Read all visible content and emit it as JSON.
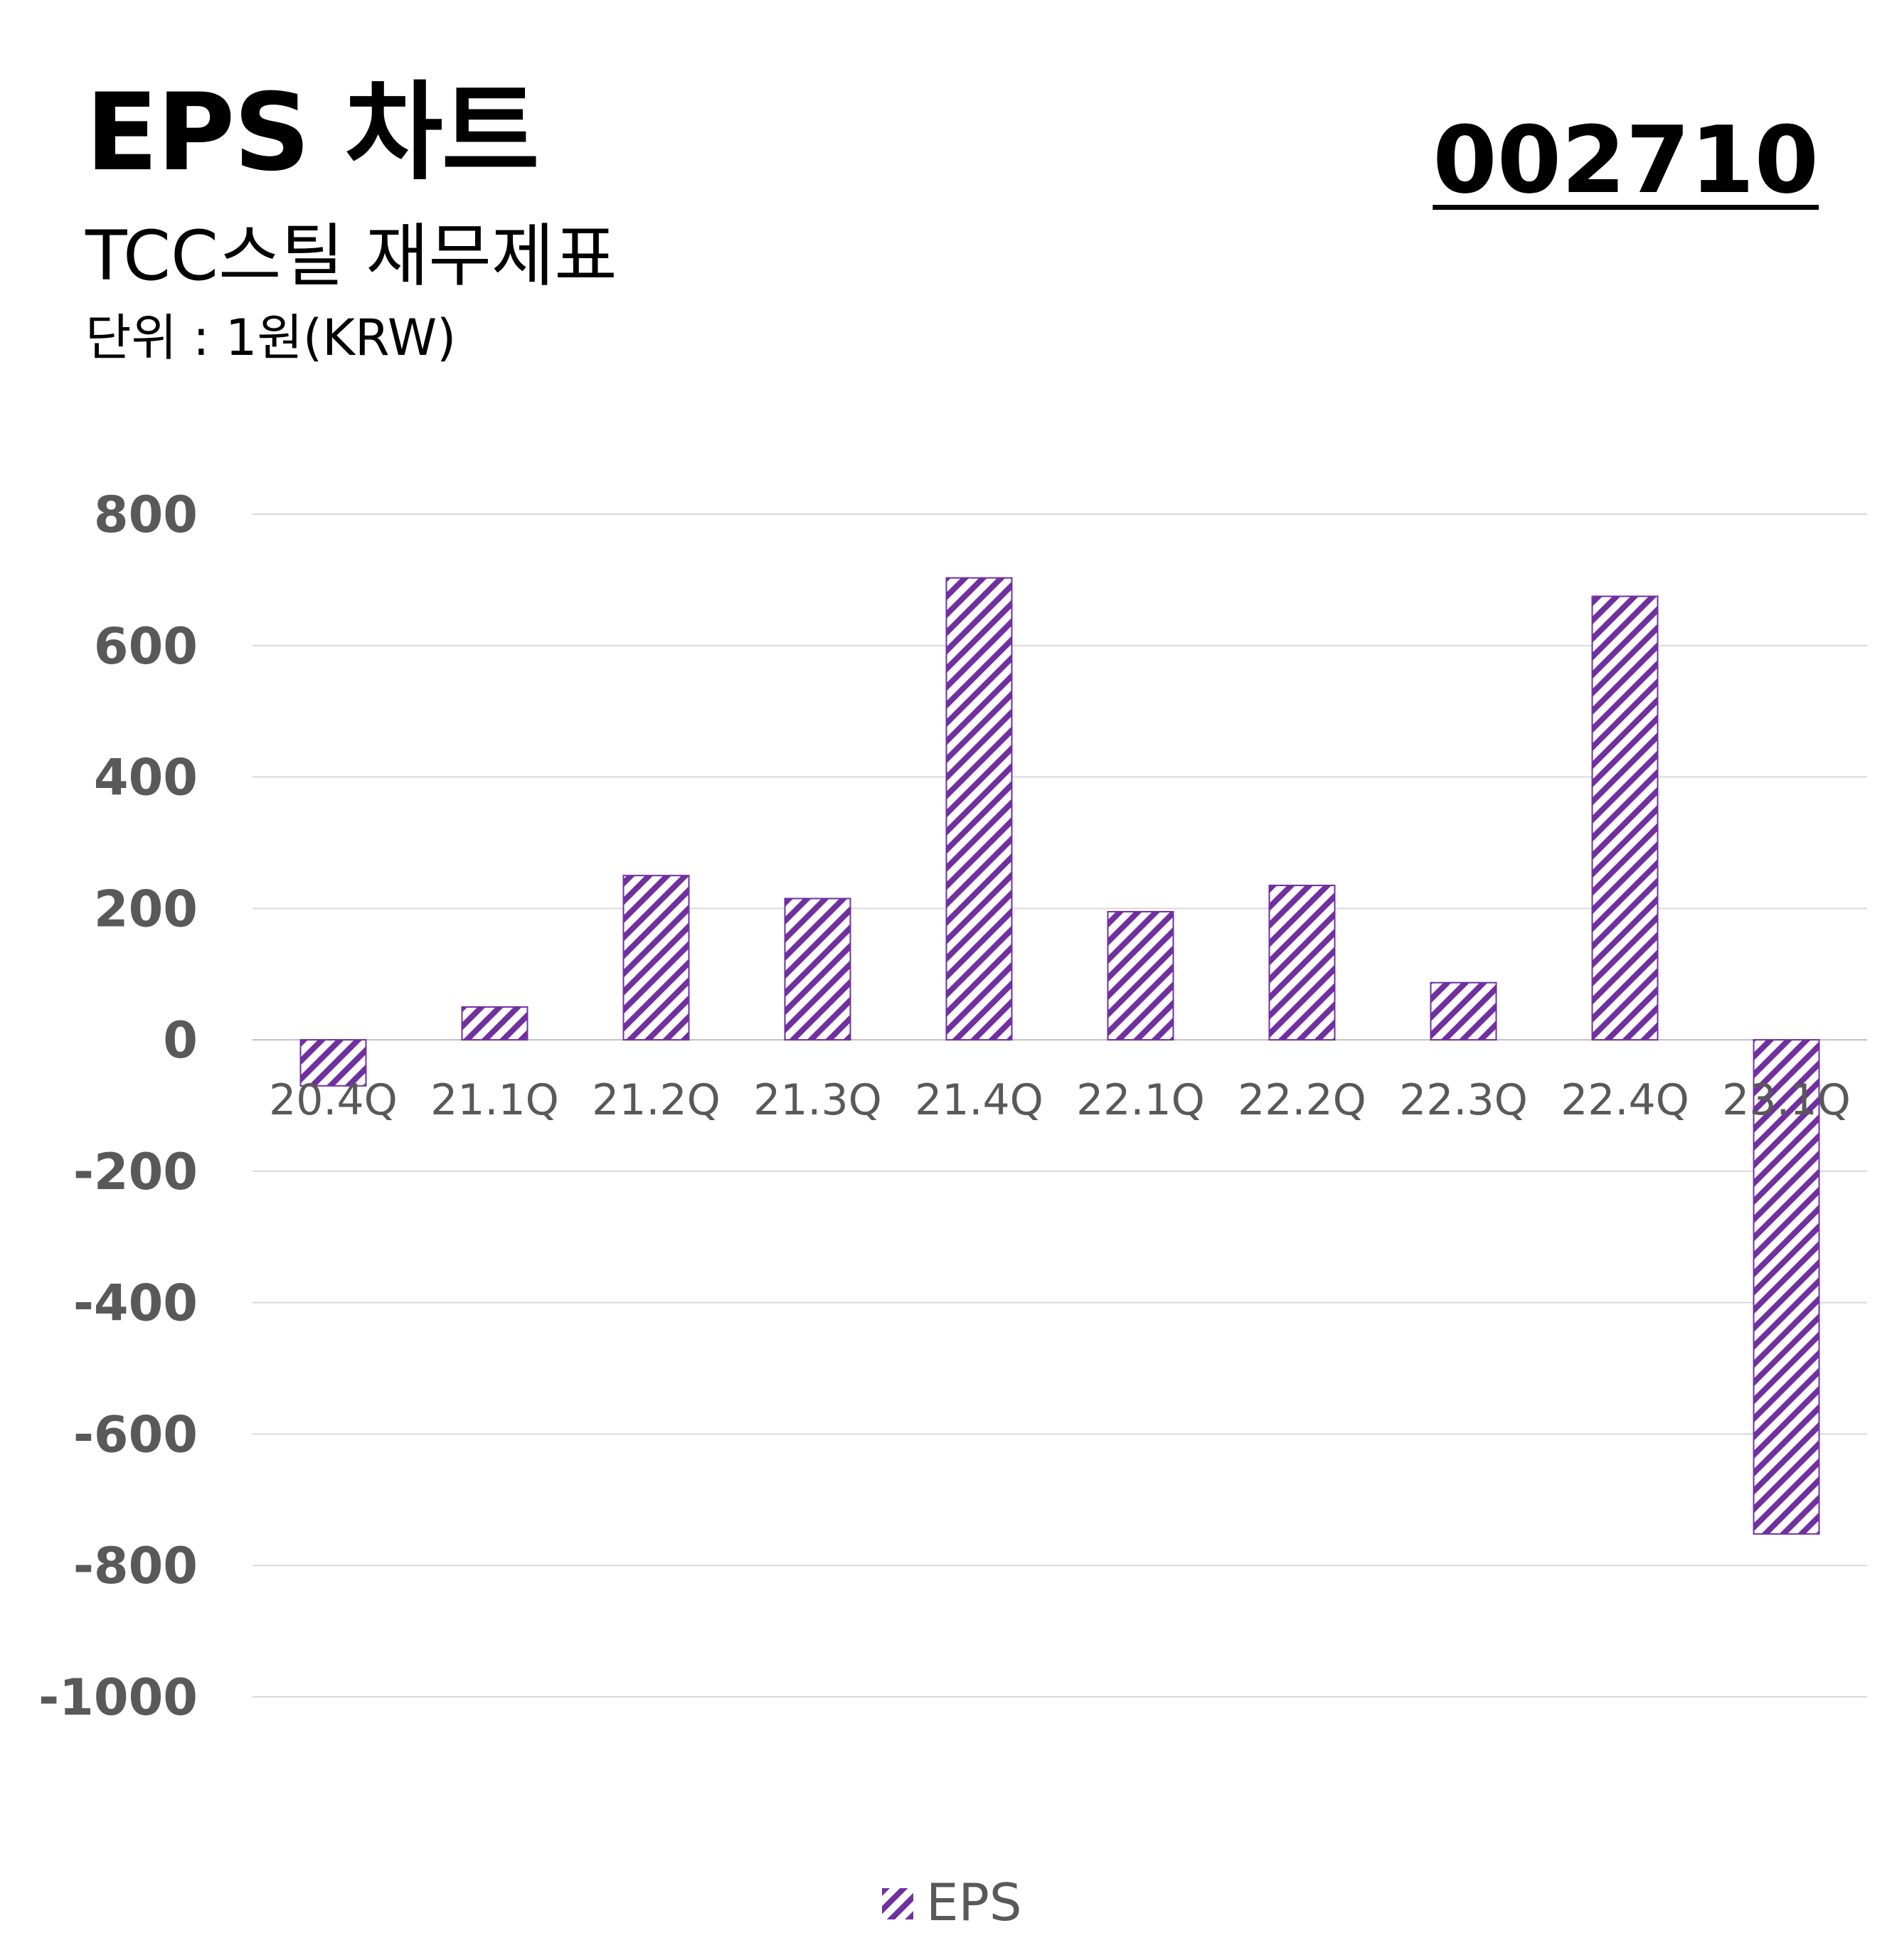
{
  "header": {
    "title": "EPS 차트",
    "subtitle": "TCC스틸 재무제표",
    "unit": "단위 : 1원(KRW)",
    "code": "002710"
  },
  "colors": {
    "bar": "#7030A0",
    "grid": "#d9d9d9",
    "tick": "#595959"
  },
  "chart_data": {
    "type": "bar",
    "pattern": "diagonal-hatch",
    "categories": [
      "20.4Q",
      "21.1Q",
      "21.2Q",
      "21.3Q",
      "21.4Q",
      "22.1Q",
      "22.2Q",
      "22.3Q",
      "22.4Q",
      "23.1Q"
    ],
    "series": [
      {
        "name": "EPS",
        "values": [
          -70,
          50,
          250,
          215,
          703,
          195,
          235,
          87,
          675,
          -752
        ]
      }
    ],
    "ylim": [
      -1000,
      800
    ],
    "yticks": [
      800,
      600,
      400,
      200,
      0,
      -200,
      -400,
      -600,
      -800,
      -1000
    ],
    "grid": true,
    "legend": "bottom-center"
  }
}
